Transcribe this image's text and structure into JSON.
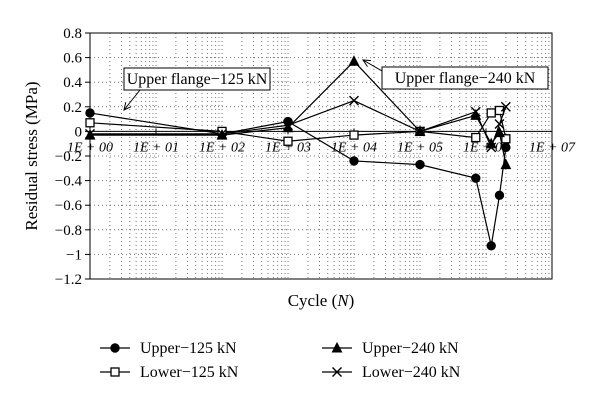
{
  "chart_data": {
    "type": "line",
    "xlabel": "Cycle",
    "xlabel_var": "N",
    "ylabel": "Residual stress (MPa)",
    "ylim": [
      -1.2,
      0.8
    ],
    "yticks": [
      0.8,
      0.6,
      0.4,
      0.2,
      0,
      -0.2,
      -0.4,
      -0.6,
      -0.8,
      -1,
      -1.2
    ],
    "ytick_labels": [
      "0.8",
      "0.6",
      "0.4",
      "0.2",
      "0",
      "−0.2",
      "−0.4",
      "−0.6",
      "−0.8",
      "−1",
      "−1.2"
    ],
    "x_scale": "log",
    "xlim": [
      1,
      10000000
    ],
    "xticks": [
      1,
      10,
      100,
      1000,
      10000,
      100000,
      1000000,
      10000000
    ],
    "xtick_labels": [
      "1E + 00",
      "1E + 01",
      "1E + 02",
      "1E + 03",
      "1E + 04",
      "1E + 05",
      "1E + 06",
      "1E + 07"
    ],
    "grid": "dotted",
    "legend_placement": "bottom",
    "series": [
      {
        "name": "Upper−125 kN",
        "marker": "filled-circle",
        "x": [
          1,
          100,
          1000,
          10000,
          100000,
          700000,
          1200000,
          1600000,
          2000000
        ],
        "y": [
          0.15,
          -0.02,
          0.08,
          -0.24,
          -0.27,
          -0.38,
          -0.93,
          -0.52,
          -0.13
        ]
      },
      {
        "name": "Lower−125 kN",
        "marker": "open-square",
        "x": [
          1,
          100,
          1000,
          10000,
          100000,
          700000,
          1200000,
          1600000,
          2000000
        ],
        "y": [
          0.07,
          0.0,
          -0.08,
          -0.03,
          0.0,
          -0.05,
          0.15,
          0.17,
          -0.06
        ]
      },
      {
        "name": "Upper−240 kN",
        "marker": "filled-triangle",
        "x": [
          1,
          100,
          1000,
          10000,
          100000,
          700000,
          1200000,
          1600000,
          2000000
        ],
        "y": [
          -0.03,
          -0.03,
          0.03,
          0.57,
          0.0,
          0.13,
          -0.1,
          -0.01,
          -0.27
        ]
      },
      {
        "name": "Lower−240 kN",
        "marker": "cross",
        "x": [
          1,
          100,
          1000,
          10000,
          100000,
          700000,
          1200000,
          1600000,
          2000000
        ],
        "y": [
          -0.02,
          -0.02,
          0.05,
          0.25,
          0.0,
          0.16,
          -0.13,
          0.06,
          0.2
        ]
      }
    ],
    "annotations": [
      {
        "text": "Upper flange−125 kN",
        "points_to": {
          "x": 1,
          "y": 0.15
        }
      },
      {
        "text": "Upper flange−240 kN",
        "points_to": {
          "x": 10000,
          "y": 0.57
        }
      }
    ]
  }
}
